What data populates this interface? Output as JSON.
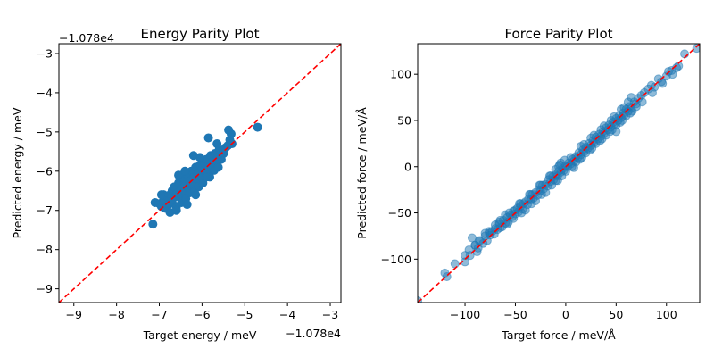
{
  "chart_data": [
    {
      "type": "scatter",
      "title": "Energy Parity Plot",
      "xlabel": "Target energy / meV",
      "ylabel": "Predicted energy / meV",
      "x_offset_label": "−1.078e4",
      "y_offset_label": "−1.078e4",
      "xlim": [
        -9.35,
        -2.75
      ],
      "ylim": [
        -9.35,
        -2.75
      ],
      "xticks": [
        -9,
        -8,
        -7,
        -6,
        -5,
        -4,
        -3
      ],
      "yticks": [
        -9,
        -8,
        -7,
        -6,
        -5,
        -4,
        -3
      ],
      "xtick_labels": [
        "−9",
        "−8",
        "−7",
        "−6",
        "−5",
        "−4",
        "−3"
      ],
      "ytick_labels": [
        "−9",
        "−8",
        "−7",
        "−6",
        "−5",
        "−4",
        "−3"
      ],
      "marker_color": "#1f77b4",
      "marker_alpha": 1.0,
      "parity_line_color": "#ff0000",
      "points": [
        [
          -7.15,
          -7.35
        ],
        [
          -7.1,
          -6.8
        ],
        [
          -7.0,
          -6.83
        ],
        [
          -6.95,
          -6.9
        ],
        [
          -6.9,
          -6.75
        ],
        [
          -6.85,
          -6.95
        ],
        [
          -6.8,
          -6.7
        ],
        [
          -6.78,
          -6.85
        ],
        [
          -6.75,
          -6.6
        ],
        [
          -6.7,
          -6.8
        ],
        [
          -6.7,
          -6.5
        ],
        [
          -6.65,
          -6.4
        ],
        [
          -6.62,
          -6.65
        ],
        [
          -6.6,
          -6.9
        ],
        [
          -6.58,
          -6.55
        ],
        [
          -6.55,
          -6.3
        ],
        [
          -6.52,
          -6.6
        ],
        [
          -6.5,
          -6.45
        ],
        [
          -6.48,
          -6.8
        ],
        [
          -6.45,
          -6.2
        ],
        [
          -6.42,
          -6.5
        ],
        [
          -6.4,
          -6.35
        ],
        [
          -6.38,
          -6.7
        ],
        [
          -6.35,
          -6.1
        ],
        [
          -6.32,
          -6.45
        ],
        [
          -6.3,
          -6.25
        ],
        [
          -6.28,
          -6.55
        ],
        [
          -6.25,
          -6.0
        ],
        [
          -6.22,
          -6.35
        ],
        [
          -6.2,
          -6.15
        ],
        [
          -6.18,
          -6.5
        ],
        [
          -6.15,
          -5.9
        ],
        [
          -6.12,
          -6.2
        ],
        [
          -6.1,
          -6.05
        ],
        [
          -6.08,
          -6.4
        ],
        [
          -6.05,
          -5.85
        ],
        [
          -6.02,
          -6.15
        ],
        [
          -6.0,
          -5.95
        ],
        [
          -5.98,
          -6.3
        ],
        [
          -5.95,
          -5.8
        ],
        [
          -5.92,
          -6.05
        ],
        [
          -5.9,
          -5.7
        ],
        [
          -5.88,
          -6.0
        ],
        [
          -5.85,
          -5.88
        ],
        [
          -5.82,
          -6.15
        ],
        [
          -5.8,
          -5.6
        ],
        [
          -5.78,
          -5.9
        ],
        [
          -5.75,
          -5.75
        ],
        [
          -5.72,
          -5.98
        ],
        [
          -5.7,
          -5.55
        ],
        [
          -5.68,
          -5.8
        ],
        [
          -5.65,
          -5.65
        ],
        [
          -5.62,
          -5.9
        ],
        [
          -5.6,
          -5.45
        ],
        [
          -5.55,
          -5.7
        ],
        [
          -5.5,
          -5.55
        ],
        [
          -5.45,
          -5.4
        ],
        [
          -5.4,
          -5.35
        ],
        [
          -5.35,
          -5.2
        ],
        [
          -5.32,
          -5.05
        ],
        [
          -5.3,
          -5.3
        ],
        [
          -5.38,
          -4.95
        ],
        [
          -5.85,
          -5.15
        ],
        [
          -6.2,
          -5.6
        ],
        [
          -6.4,
          -6.0
        ],
        [
          -6.9,
          -6.6
        ],
        [
          -4.7,
          -4.88
        ],
        [
          -6.55,
          -6.1
        ],
        [
          -6.15,
          -6.6
        ],
        [
          -5.9,
          -6.15
        ],
        [
          -6.75,
          -7.05
        ],
        [
          -6.6,
          -7.0
        ],
        [
          -6.05,
          -5.65
        ],
        [
          -5.65,
          -5.3
        ],
        [
          -6.35,
          -6.85
        ],
        [
          -6.95,
          -6.6
        ]
      ]
    },
    {
      "type": "scatter",
      "title": "Force Parity Plot",
      "xlabel": "Target force / meV/Å",
      "ylabel": "Predicted force / meV/Å",
      "xlim": [
        -147,
        133
      ],
      "ylim": [
        -147,
        133
      ],
      "xticks": [
        -100,
        -50,
        0,
        50,
        100
      ],
      "yticks": [
        -100,
        -50,
        0,
        50,
        100
      ],
      "xtick_labels": [
        "−100",
        "−50",
        "0",
        "50",
        "100"
      ],
      "ytick_labels": [
        "−100",
        "−50",
        "0",
        "50",
        "100"
      ],
      "marker_color": "#1f77b4",
      "marker_alpha": 0.5,
      "parity_line_color": "#ff0000",
      "points": [
        [
          -147,
          -145
        ],
        [
          -120,
          -115
        ],
        [
          -118,
          -119
        ],
        [
          -100,
          -103
        ],
        [
          -100,
          -96
        ],
        [
          -95,
          -96
        ],
        [
          -93,
          -77
        ],
        [
          -90,
          -85
        ],
        [
          -88,
          -92
        ],
        [
          -87,
          -88
        ],
        [
          -85,
          -80
        ],
        [
          -82,
          -83
        ],
        [
          -80,
          -75
        ],
        [
          -78,
          -80
        ],
        [
          -76,
          -72
        ],
        [
          -75,
          -74
        ],
        [
          -73,
          -70
        ],
        [
          -71,
          -73
        ],
        [
          -70,
          -67
        ],
        [
          -68,
          -68
        ],
        [
          -66,
          -62
        ],
        [
          -65,
          -66
        ],
        [
          -63,
          -65
        ],
        [
          -62,
          -58
        ],
        [
          -60,
          -61
        ],
        [
          -58,
          -55
        ],
        [
          -57,
          -60
        ],
        [
          -55,
          -52
        ],
        [
          -53,
          -54
        ],
        [
          -52,
          -48
        ],
        [
          -50,
          -51
        ],
        [
          -48,
          -45
        ],
        [
          -47,
          -49
        ],
        [
          -45,
          -43
        ],
        [
          -43,
          -46
        ],
        [
          -42,
          -40
        ],
        [
          -40,
          -38
        ],
        [
          -38,
          -41
        ],
        [
          -37,
          -35
        ],
        [
          -35,
          -36
        ],
        [
          -33,
          -30
        ],
        [
          -32,
          -34
        ],
        [
          -30,
          -28
        ],
        [
          -28,
          -31
        ],
        [
          -27,
          -25
        ],
        [
          -25,
          -26
        ],
        [
          -23,
          -20
        ],
        [
          -22,
          -24
        ],
        [
          -20,
          -19
        ],
        [
          -18,
          -21
        ],
        [
          -17,
          -14
        ],
        [
          -15,
          -16
        ],
        [
          -13,
          -11
        ],
        [
          -12,
          -14
        ],
        [
          -10,
          -9
        ],
        [
          -8,
          -10
        ],
        [
          -7,
          -5
        ],
        [
          -5,
          -6
        ],
        [
          -3,
          -2
        ],
        [
          -2,
          -4
        ],
        [
          0,
          1
        ],
        [
          2,
          0
        ],
        [
          3,
          4
        ],
        [
          5,
          3
        ],
        [
          7,
          8
        ],
        [
          8,
          6
        ],
        [
          10,
          11
        ],
        [
          12,
          10
        ],
        [
          13,
          15
        ],
        [
          15,
          13
        ],
        [
          17,
          18
        ],
        [
          18,
          16
        ],
        [
          20,
          21
        ],
        [
          22,
          20
        ],
        [
          23,
          25
        ],
        [
          25,
          23
        ],
        [
          27,
          28
        ],
        [
          28,
          26
        ],
        [
          30,
          32
        ],
        [
          32,
          30
        ],
        [
          33,
          35
        ],
        [
          35,
          33
        ],
        [
          37,
          38
        ],
        [
          38,
          36
        ],
        [
          40,
          42
        ],
        [
          42,
          40
        ],
        [
          43,
          45
        ],
        [
          45,
          43
        ],
        [
          47,
          48
        ],
        [
          48,
          46
        ],
        [
          50,
          52
        ],
        [
          52,
          50
        ],
        [
          53,
          55
        ],
        [
          55,
          53
        ],
        [
          57,
          58
        ],
        [
          58,
          56
        ],
        [
          60,
          62
        ],
        [
          62,
          60
        ],
        [
          63,
          65
        ],
        [
          65,
          63
        ],
        [
          68,
          70
        ],
        [
          70,
          68
        ],
        [
          72,
          74
        ],
        [
          75,
          77
        ],
        [
          78,
          80
        ],
        [
          82,
          84
        ],
        [
          85,
          88
        ],
        [
          88,
          86
        ],
        [
          92,
          95
        ],
        [
          95,
          92
        ],
        [
          100,
          98
        ],
        [
          102,
          103
        ],
        [
          105,
          104
        ],
        [
          110,
          107
        ],
        [
          118,
          122
        ],
        [
          130,
          128
        ],
        [
          -50,
          -47
        ],
        [
          -60,
          -52
        ],
        [
          -90,
          -85
        ],
        [
          -40,
          -47
        ],
        [
          -58,
          -62
        ],
        [
          -45,
          -40
        ],
        [
          -30,
          -37
        ],
        [
          -20,
          -28
        ],
        [
          -10,
          -15
        ],
        [
          0,
          -5
        ],
        [
          10,
          5
        ],
        [
          20,
          15
        ],
        [
          30,
          25
        ],
        [
          40,
          34
        ],
        [
          50,
          45
        ],
        [
          60,
          55
        ],
        [
          70,
          65
        ],
        [
          50,
          38
        ],
        [
          -15,
          -10
        ],
        [
          -5,
          4
        ],
        [
          15,
          22
        ],
        [
          35,
          40
        ],
        [
          55,
          62
        ],
        [
          65,
          75
        ],
        [
          -70,
          -63
        ],
        [
          -80,
          -72
        ],
        [
          -10,
          -3
        ],
        [
          25,
          31
        ],
        [
          45,
          50
        ],
        [
          -25,
          -20
        ],
        [
          -35,
          -30
        ],
        [
          5,
          10
        ],
        [
          -65,
          -58
        ],
        [
          -52,
          -56
        ],
        [
          -1,
          7
        ],
        [
          8,
          -1
        ],
        [
          18,
          24
        ],
        [
          28,
          34
        ],
        [
          38,
          44
        ],
        [
          48,
          54
        ],
        [
          58,
          64
        ],
        [
          62,
          70
        ],
        [
          -6,
          2
        ],
        [
          -16,
          -10
        ],
        [
          -26,
          -20
        ],
        [
          -36,
          -30
        ],
        [
          -46,
          -40
        ],
        [
          -56,
          -50
        ],
        [
          -66,
          -60
        ],
        [
          -76,
          -70
        ],
        [
          -86,
          -80
        ],
        [
          -96,
          -90
        ],
        [
          -44,
          -50
        ],
        [
          -34,
          -40
        ],
        [
          -24,
          -30
        ],
        [
          -14,
          -20
        ],
        [
          -4,
          -10
        ],
        [
          6,
          0
        ],
        [
          16,
          10
        ],
        [
          26,
          20
        ],
        [
          36,
          30
        ],
        [
          46,
          40
        ],
        [
          56,
          50
        ],
        [
          66,
          60
        ],
        [
          76,
          70
        ],
        [
          86,
          80
        ],
        [
          96,
          90
        ],
        [
          106,
          100
        ],
        [
          -110,
          -105
        ],
        [
          112,
          109
        ],
        [
          -8,
          -15
        ],
        [
          14,
          8
        ],
        [
          24,
          18
        ],
        [
          34,
          28
        ],
        [
          44,
          38
        ],
        [
          54,
          48
        ],
        [
          64,
          58
        ],
        [
          -7,
          0
        ]
      ]
    }
  ]
}
